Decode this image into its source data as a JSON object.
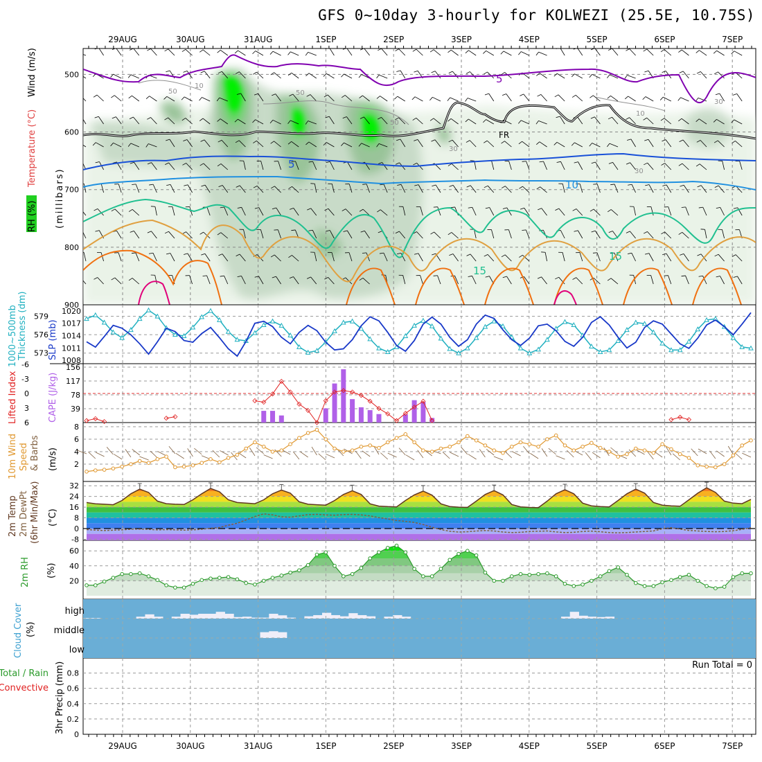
{
  "title": "GFS 0~10day 3-hourly for KOLWEZI (25.5E, 10.75S)",
  "dates": [
    "29AUG",
    "30AUG",
    "31AUG",
    "1SEP",
    "2SEP",
    "3SEP",
    "4SEP",
    "5SEP",
    "6SEP",
    "7SEP"
  ],
  "panel_labels": {
    "upper_rh": "RH (%)",
    "upper_temp": "Temperature (°C)",
    "upper_wind": "Wind (m/s)",
    "upper_mb": "(millibars)",
    "thick": "1000~500mb",
    "thick2": "Thickness (dm)",
    "slp": "SLP (mb)",
    "li": "Lifted Index",
    "cape": "CAPE (J/kg)",
    "wind10a": "10m Wind",
    "wind10b": "Speed",
    "wind10c": "& Barbs",
    "wind10u": "(m/s)",
    "t2a": "2m Temp",
    "t2b": "2m DewPt",
    "t2c": "(6hr Min/Max)",
    "t2u": "(°C)",
    "rh2": "2m RH",
    "rh2u": "(%)",
    "cloud": "Cloud Cover",
    "cloudu": "(%)",
    "cloud_high": "high",
    "cloud_middle": "middle",
    "cloud_low": "low",
    "precip1": "Total / Rain",
    "precip2": "Convective",
    "precip3": "3hr Precip (mm)",
    "run_total": "Run Total = 0"
  },
  "contour_labels": {
    "t5_top": "5",
    "fr": "FR",
    "t5": "5",
    "t10": "10",
    "t15a": "15",
    "t15b": "15",
    "rh50a": "50",
    "rh50b": "50",
    "rh50c": "50",
    "rh30a": "30",
    "rh30b": "30",
    "rh10a": "10",
    "rh10b": "10",
    "rh30c": "30"
  },
  "chart_data": [
    {
      "panel": "upper-air",
      "type": "heatmap",
      "ylabel": "(millibars)",
      "y_ticks": [
        500,
        600,
        700,
        800,
        900
      ],
      "ylim": [
        900,
        455
      ],
      "x_ticks": [
        "29AUG",
        "30AUG",
        "31AUG",
        "1SEP",
        "2SEP",
        "3SEP",
        "4SEP",
        "5SEP",
        "6SEP",
        "7SEP"
      ],
      "contours": {
        "temperature_c": [
          5,
          0,
          5,
          10,
          15
        ],
        "freezing_level_label": "FR",
        "rh_percent": [
          10,
          30,
          50
        ]
      },
      "grid": true
    },
    {
      "panel": "thickness-slp",
      "type": "line",
      "y_ticks_left": [
        573,
        576,
        579
      ],
      "y_ticks_right": [
        1008,
        1011,
        1014,
        1017,
        1020
      ],
      "series": [
        {
          "name": "1000~500mb Thickness (dm)",
          "color": "#20b0c0",
          "values": [
            578.6,
            579.2,
            578.0,
            576.4,
            575.5,
            576.8,
            578.6,
            580.0,
            579.0,
            577.1,
            576.0,
            575.8,
            577.2,
            578.9,
            579.9,
            578.4,
            576.5,
            575.2,
            575.0,
            576.3,
            577.6,
            578.2,
            577.5,
            575.9,
            574.0,
            573.1,
            573.4,
            574.8,
            576.6,
            578.0,
            578.2,
            577.0,
            575.3,
            573.8,
            573.2,
            574.0,
            575.8,
            577.5,
            578.3,
            577.4,
            575.4,
            573.7,
            573.0,
            573.8,
            575.5,
            577.3,
            578.2,
            577.4,
            575.6,
            573.8,
            573.0,
            573.6,
            575.2,
            577.0,
            578.1,
            577.6,
            575.9,
            574.1,
            573.2,
            573.5,
            575.0,
            576.8,
            578.0,
            577.8,
            576.4,
            574.6,
            573.5,
            573.5,
            574.9,
            576.9,
            578.4,
            578.6,
            577.3,
            575.5,
            574.0,
            573.8
          ]
        },
        {
          "name": "SLP (mb)",
          "color": "#1838c8",
          "values": [
            1012.5,
            1011.2,
            1013.8,
            1016.5,
            1015.8,
            1014.2,
            1012.0,
            1009.5,
            1012.5,
            1015.8,
            1015.0,
            1012.8,
            1012.4,
            1014.5,
            1016.0,
            1013.5,
            1010.8,
            1009.0,
            1012.6,
            1017.0,
            1017.5,
            1016.2,
            1013.6,
            1012.0,
            1014.8,
            1016.5,
            1015.2,
            1012.4,
            1010.5,
            1010.8,
            1013.0,
            1016.4,
            1018.6,
            1017.6,
            1014.8,
            1011.6,
            1010.2,
            1012.8,
            1016.8,
            1018.5,
            1016.8,
            1013.6,
            1011.4,
            1013.0,
            1016.8,
            1019.0,
            1018.2,
            1015.4,
            1013.0,
            1011.6,
            1013.4,
            1016.4,
            1016.8,
            1015.2,
            1012.6,
            1011.4,
            1013.6,
            1017.2,
            1018.6,
            1016.6,
            1013.6,
            1011.0,
            1012.4,
            1016.0,
            1017.6,
            1016.8,
            1014.4,
            1012.0,
            1010.9,
            1013.4,
            1016.6,
            1017.8,
            1016.2,
            1014.2,
            1016.8,
            1019.6
          ]
        }
      ]
    },
    {
      "panel": "instability",
      "type": "bar",
      "y_ticks_left": [
        -6,
        -3,
        0,
        3,
        6
      ],
      "y_ticks_right": [
        39,
        78,
        117,
        156
      ],
      "series": [
        {
          "name": "CAPE (J/kg)",
          "color": "#b060e8",
          "bars": [
            [
              20,
              33
            ],
            [
              21,
              33
            ],
            [
              22,
              20
            ],
            [
              27,
              40
            ],
            [
              28,
              110
            ],
            [
              29,
              150
            ],
            [
              30,
              66
            ],
            [
              31,
              43
            ],
            [
              32,
              35
            ],
            [
              33,
              24
            ],
            [
              36,
              23
            ],
            [
              37,
              63
            ],
            [
              38,
              58
            ],
            [
              39,
              13
            ]
          ]
        },
        {
          "name": "Lifted Index",
          "color": "#e02020",
          "points": [
            [
              0,
              5.6
            ],
            [
              1,
              5.2
            ],
            [
              2,
              5.8
            ],
            [
              9,
              5.1
            ],
            [
              10,
              4.8
            ],
            [
              19,
              1.5
            ],
            [
              20,
              1.8
            ],
            [
              21,
              0.1
            ],
            [
              22,
              -2.5
            ],
            [
              23,
              -0.3
            ],
            [
              24,
              2.2
            ],
            [
              25,
              3.5
            ],
            [
              26,
              6.0
            ],
            [
              27,
              1.5
            ],
            [
              28,
              -0.3
            ],
            [
              29,
              -0.6
            ],
            [
              30,
              -0.3
            ],
            [
              31,
              0.4
            ],
            [
              32,
              1.6
            ],
            [
              33,
              3.1
            ],
            [
              34,
              4.2
            ],
            [
              35,
              5.6
            ],
            [
              36,
              4.1
            ],
            [
              37,
              2.8
            ],
            [
              38,
              1.6
            ],
            [
              39,
              5.6
            ],
            [
              66,
              5.4
            ],
            [
              67,
              4.9
            ],
            [
              68,
              5.4
            ]
          ]
        }
      ]
    },
    {
      "panel": "wind10m",
      "type": "line",
      "ylabel": "(m/s)",
      "y_ticks": [
        2,
        4,
        6,
        8
      ],
      "series": [
        {
          "name": "10m Wind Speed",
          "color": "#e09830",
          "values": [
            0.8,
            1.0,
            1.1,
            1.3,
            1.6,
            2.0,
            2.5,
            2.2,
            2.8,
            3.2,
            1.5,
            1.6,
            1.8,
            2.2,
            2.8,
            2.3,
            3.0,
            3.5,
            4.5,
            5.5,
            4.8,
            4.0,
            4.2,
            5.2,
            6.2,
            7.0,
            7.5,
            6.0,
            4.5,
            4.0,
            4.2,
            4.8,
            5.0,
            4.6,
            5.5,
            6.2,
            6.8,
            5.5,
            4.2,
            4.0,
            4.5,
            4.8,
            5.5,
            6.5,
            5.8,
            5.0,
            4.2,
            3.8,
            4.8,
            5.5,
            5.2,
            4.8,
            6.0,
            6.6,
            5.0,
            4.2,
            4.8,
            5.4,
            4.6,
            4.0,
            3.2,
            3.6,
            4.5,
            4.2,
            3.8,
            5.2,
            4.4,
            3.6,
            3.0,
            1.8,
            1.6,
            1.5,
            2.0,
            3.4,
            5.0,
            5.8
          ]
        }
      ]
    },
    {
      "panel": "temp2m",
      "type": "area",
      "ylabel": "(°C)",
      "y_ticks": [
        -8,
        0,
        8,
        16,
        24,
        32
      ],
      "series": [
        {
          "name": "2m Temp",
          "color": "#603820",
          "values": [
            19.5,
            18.5,
            18.2,
            17.8,
            21,
            26,
            29.5,
            27,
            20.5,
            18.6,
            18.2,
            18,
            21.5,
            26,
            30,
            27.5,
            21.5,
            19.5,
            19,
            18.6,
            21.5,
            26,
            28.8,
            26.5,
            20,
            18.2,
            17.8,
            17.5,
            21,
            25.5,
            28.3,
            25.5,
            18.5,
            16.8,
            16.4,
            16.2,
            21,
            25.2,
            28,
            25,
            18.5,
            16.5,
            16,
            15.8,
            20.5,
            25.5,
            28.4,
            25.2,
            18,
            16.2,
            15.8,
            15.6,
            20.5,
            26,
            29,
            26,
            19,
            17,
            16.5,
            16.2,
            21,
            26,
            29.5,
            26.5,
            19.5,
            17.5,
            17,
            16.7,
            21.5,
            26.5,
            30.5,
            27,
            20.5,
            19,
            18.6,
            21.8
          ]
        },
        {
          "name": "2m DewPt",
          "color": "#806040",
          "values": [
            -0.8,
            -1.2,
            -1.5,
            -1.2,
            -1.0,
            -0.5,
            -0.4,
            -0.6,
            -1.0,
            -0.8,
            -1.0,
            -1.2,
            -1.0,
            -0.5,
            0.2,
            0.8,
            2.5,
            4.0,
            6.5,
            9.0,
            11.0,
            10.2,
            8.8,
            8.5,
            9.5,
            10.4,
            10.6,
            10.2,
            10.0,
            10.4,
            10.6,
            10.2,
            9.5,
            8.2,
            7.2,
            6.0,
            5.4,
            4.6,
            3.0,
            1.0,
            -0.8,
            -2.0,
            -2.6,
            -2.4,
            -1.8,
            -1.5,
            -1.8,
            -2.6,
            -3.0,
            -2.8,
            -2.2,
            -2.0,
            -1.8,
            -2.5,
            -3.0,
            -2.8,
            -2.2,
            -1.9,
            -2.4,
            -3.0,
            -3.2,
            -3.0,
            -2.6,
            -2.2,
            -1.8,
            -0.2,
            0.6,
            -0.4,
            -1.4,
            -1.8,
            -2.2,
            -2.4,
            -2.2,
            -1.6,
            -0.6,
            0.6
          ]
        }
      ]
    },
    {
      "panel": "rh2m",
      "type": "area",
      "ylabel": "(%)",
      "y_ticks": [
        20,
        40,
        60
      ],
      "series": [
        {
          "name": "2m RH",
          "color": "#2a9a2a",
          "values": [
            14,
            14,
            19,
            24,
            29,
            29,
            30,
            26,
            21,
            14,
            11,
            11,
            16,
            21,
            23,
            24,
            25,
            22,
            17,
            15,
            20,
            24,
            27,
            31,
            34,
            41,
            55,
            58,
            40,
            26,
            29,
            37,
            50,
            58,
            64,
            67,
            58,
            36,
            26,
            26,
            36,
            48,
            56,
            60,
            54,
            31,
            20,
            20,
            26,
            29,
            28,
            29,
            30,
            26,
            16,
            13,
            15,
            20,
            26,
            33,
            38,
            28,
            17,
            13,
            13,
            18,
            21,
            25,
            28,
            20,
            13,
            10,
            12,
            25,
            30,
            30
          ]
        }
      ]
    },
    {
      "panel": "cloud",
      "type": "bar",
      "levels": [
        "high",
        "middle",
        "low"
      ],
      "series": [
        {
          "name": "high",
          "color": "#f0eef8",
          "values": [
            3,
            3,
            0,
            0,
            0,
            0,
            10,
            22,
            10,
            0,
            10,
            25,
            20,
            25,
            25,
            35,
            25,
            8,
            10,
            5,
            5,
            25,
            17,
            5,
            0,
            12,
            18,
            30,
            18,
            12,
            28,
            18,
            12,
            0,
            10,
            18,
            10,
            0,
            0,
            0,
            0,
            0,
            0,
            0,
            0,
            0,
            0,
            0,
            0,
            0,
            0,
            0,
            0,
            0,
            10,
            35,
            15,
            10,
            8,
            10,
            0,
            0,
            0,
            0,
            0,
            0,
            0,
            0,
            0,
            0,
            0,
            0,
            0,
            0,
            0,
            0
          ]
        },
        {
          "name": "middle",
          "color": "#f0eef8",
          "values": [
            0,
            0,
            0,
            0,
            0,
            0,
            0,
            0,
            0,
            0,
            0,
            0,
            0,
            0,
            0,
            0,
            0,
            0,
            0,
            0,
            30,
            35,
            30,
            0,
            0,
            0,
            0,
            0,
            0,
            0,
            0,
            0,
            0,
            0,
            0,
            0,
            0,
            0,
            0,
            0,
            0,
            0,
            0,
            0,
            0,
            0,
            0,
            0,
            0,
            0,
            0,
            0,
            0,
            0,
            0,
            0,
            0,
            0,
            0,
            0,
            0,
            0,
            0,
            0,
            0,
            0,
            0,
            0,
            0,
            0,
            0,
            0,
            0,
            0,
            0,
            0
          ]
        }
      ]
    },
    {
      "panel": "precip",
      "type": "bar",
      "ylabel": "3hr Precip (mm)",
      "y_ticks": [
        0,
        0.2,
        0.4,
        0.6,
        0.8
      ],
      "ylim": [
        0,
        0.95
      ],
      "annotation": "Run Total = 0",
      "x_ticks": [
        "29AUG",
        "30AUG",
        "31AUG",
        "1SEP",
        "2SEP",
        "3SEP",
        "4SEP",
        "5SEP",
        "6SEP",
        "7SEP"
      ],
      "values": []
    }
  ]
}
